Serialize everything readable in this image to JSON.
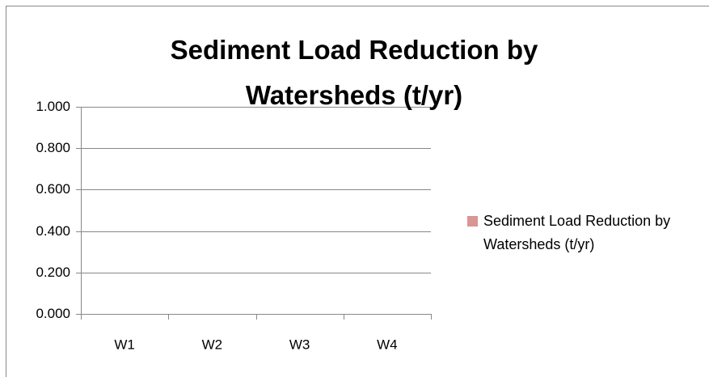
{
  "chart_data": {
    "type": "bar",
    "title": "Sediment Load Reduction by Watersheds (t/yr)",
    "categories": [
      "W1",
      "W2",
      "W3",
      "W4"
    ],
    "series": [
      {
        "name": "Sediment Load Reduction by Watersheds (t/yr)",
        "color": "#d99694",
        "values": [
          0,
          0,
          0,
          0
        ]
      }
    ],
    "ylim": [
      0,
      1
    ],
    "yticks": [
      {
        "value": 0,
        "label": "0.000"
      },
      {
        "value": 0.2,
        "label": "0.200"
      },
      {
        "value": 0.4,
        "label": "0.400"
      },
      {
        "value": 0.6,
        "label": "0.600"
      },
      {
        "value": 0.8,
        "label": "0.800"
      },
      {
        "value": 1,
        "label": "1.000"
      }
    ],
    "grid": true,
    "legend": "right"
  }
}
